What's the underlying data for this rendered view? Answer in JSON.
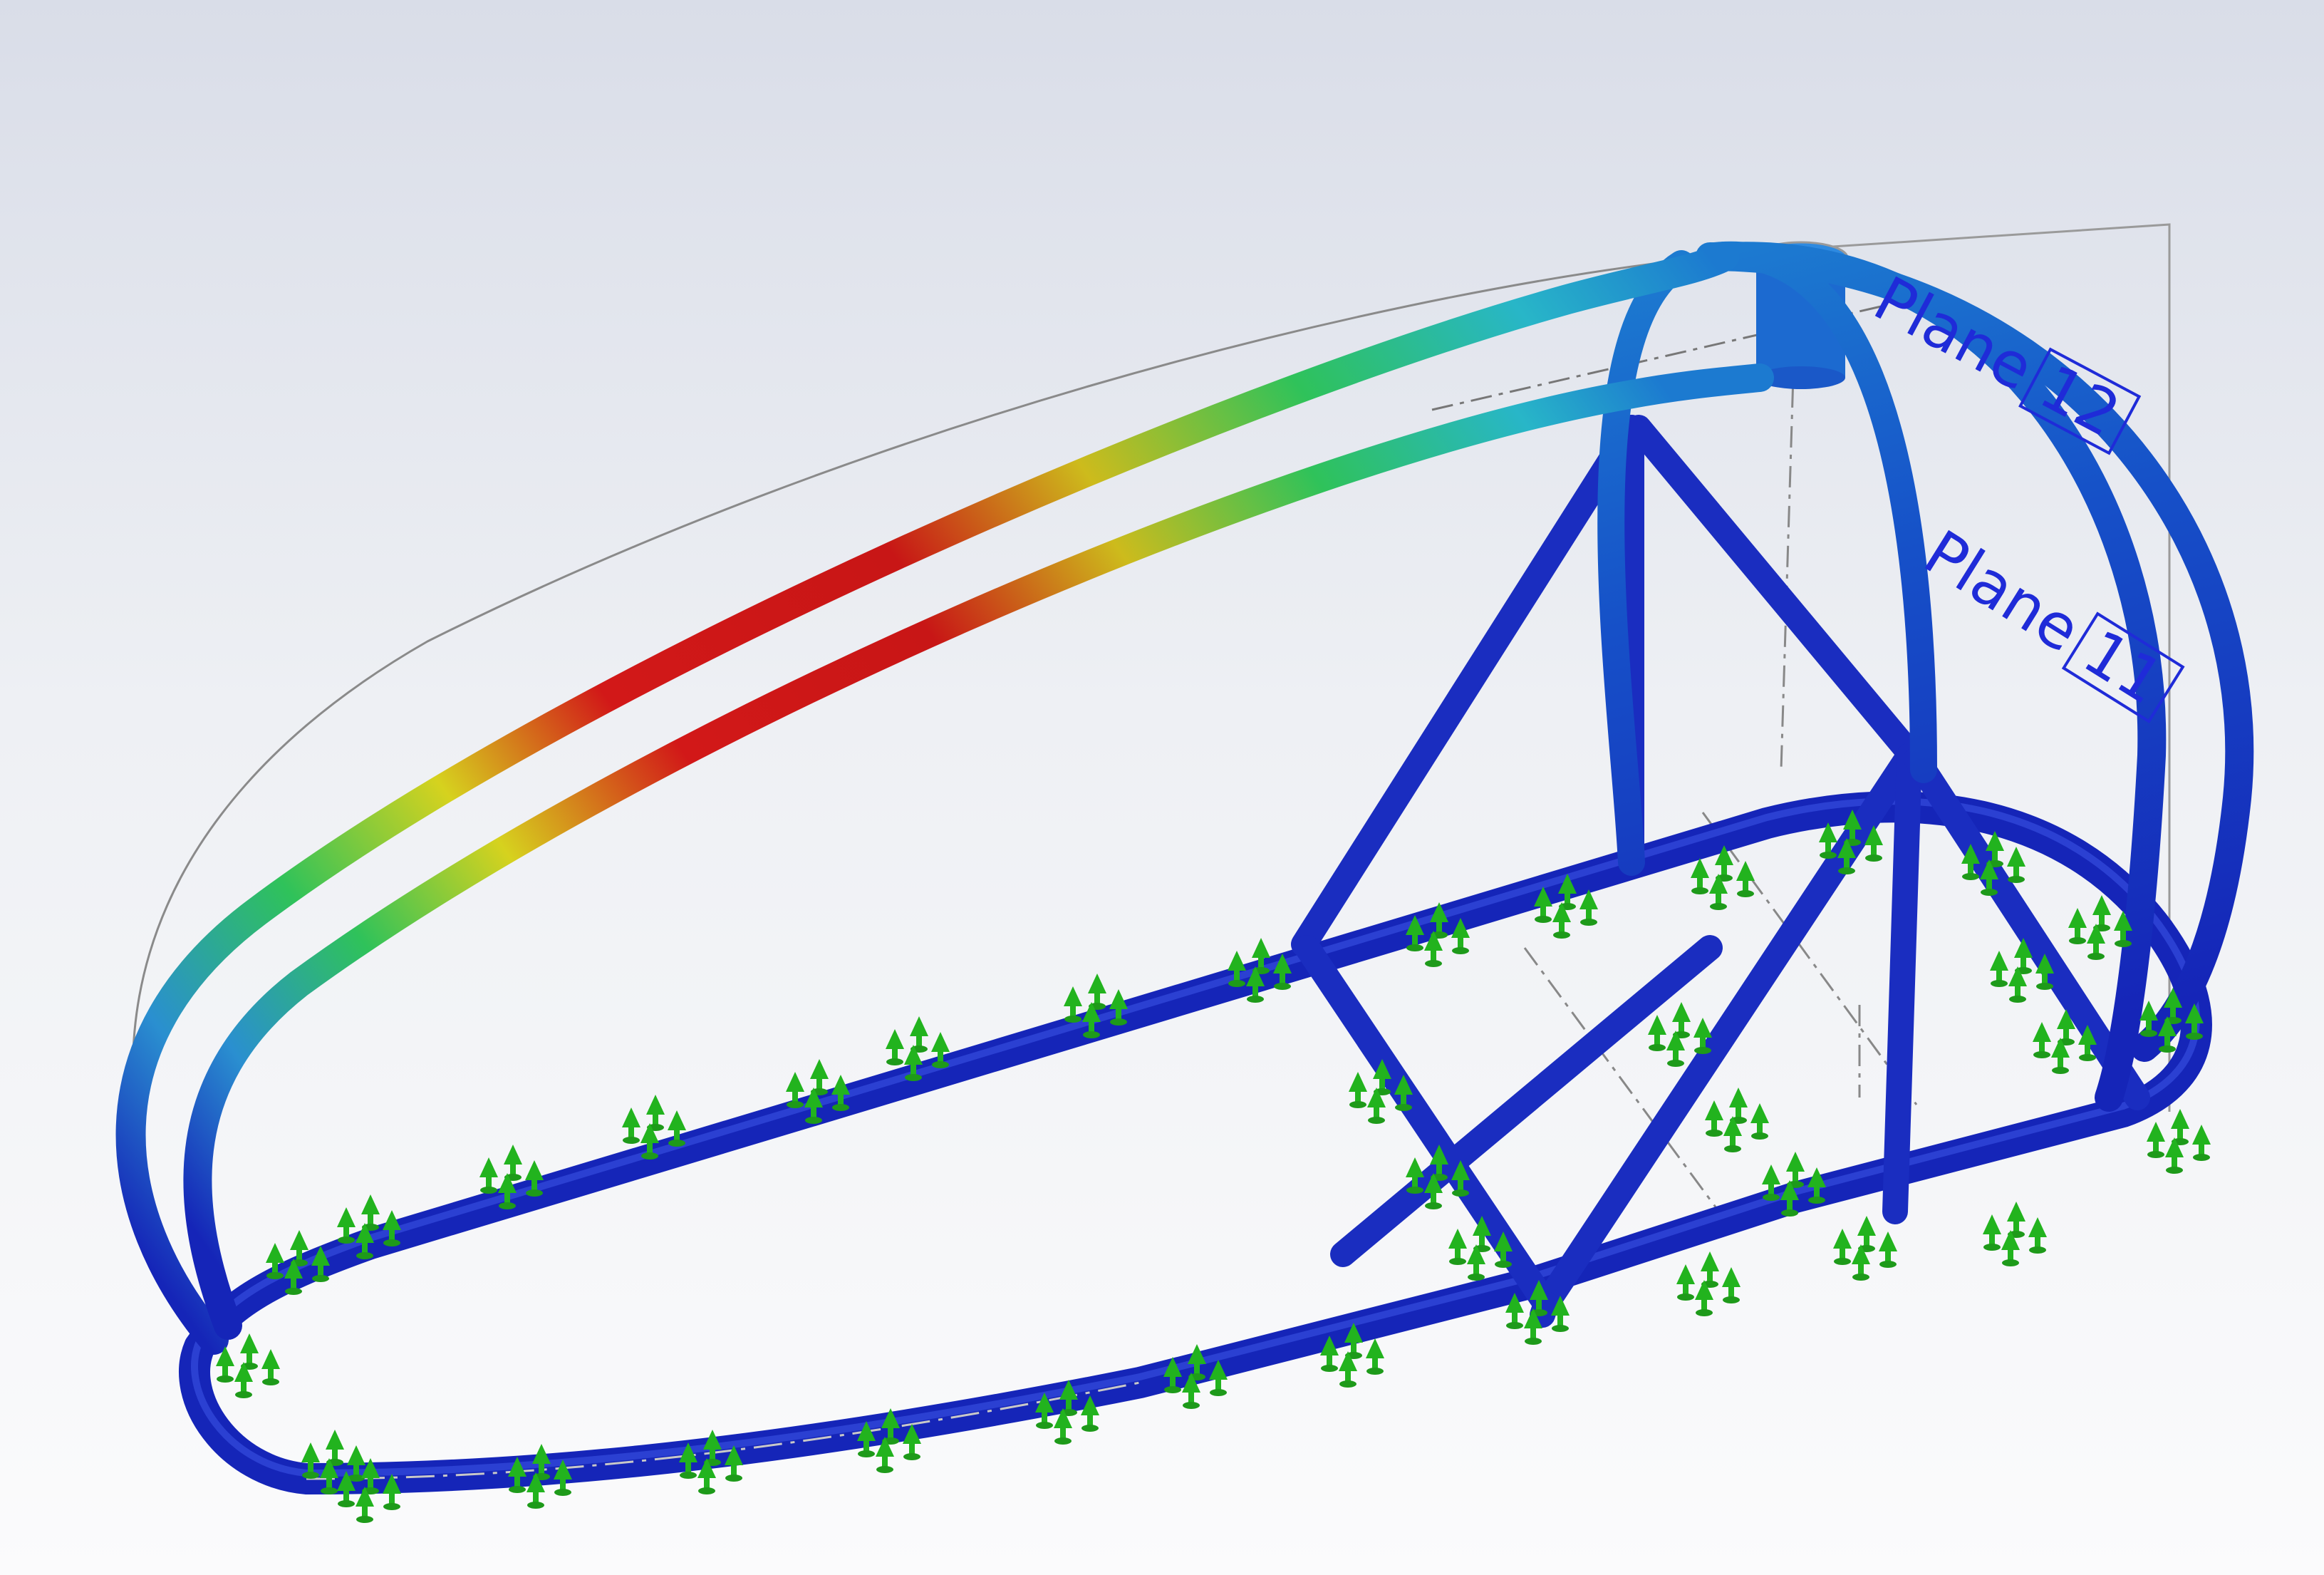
{
  "viewport": {
    "name": "simulation-graphics-area",
    "background_top": "#d9dde8",
    "background_bottom": "#fbfbfc"
  },
  "result_colors": {
    "low": "#1525b8",
    "mid_low": "#1c7ad0",
    "mid": "#2fc25a",
    "mid_high": "#d6d21e",
    "high": "#d21818"
  },
  "fixture_color": "#22b31e",
  "planes": [
    {
      "name": "Plane",
      "index": "12"
    },
    {
      "name": "Plane",
      "index": "11"
    }
  ]
}
